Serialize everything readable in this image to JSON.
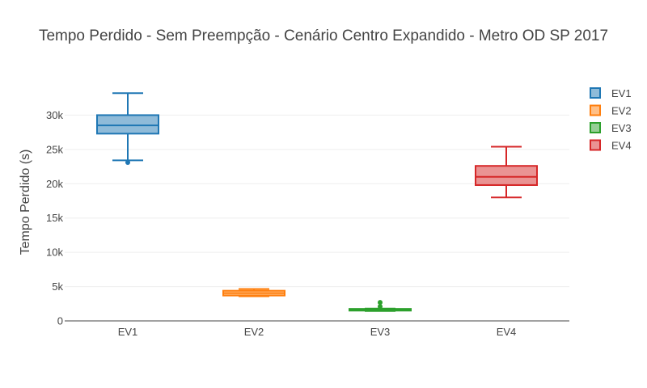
{
  "chart_data": {
    "type": "box",
    "title": "Tempo Perdido - Sem Preempção - Cenário Centro Expandido - Metro OD SP 2017",
    "xlabel": "",
    "ylabel": "Tempo Perdido (s)",
    "ylim": [
      0,
      35000
    ],
    "yticks": [
      0,
      5000,
      10000,
      15000,
      20000,
      25000,
      30000
    ],
    "ytick_labels": [
      "0",
      "5k",
      "10k",
      "15k",
      "20k",
      "25k",
      "30k"
    ],
    "categories": [
      "EV1",
      "EV2",
      "EV3",
      "EV4"
    ],
    "grid": true,
    "legend_position": "right",
    "series": [
      {
        "name": "EV1",
        "color": "#1f77b4",
        "fill": "rgba(31,119,180,0.5)",
        "min": 23400,
        "q1": 27300,
        "median": 28500,
        "q3": 30000,
        "max": 33200,
        "outliers": [
          23100
        ]
      },
      {
        "name": "EV2",
        "color": "#ff7f0e",
        "fill": "rgba(255,127,14,0.5)",
        "min": 3600,
        "q1": 3700,
        "median": 4050,
        "q3": 4400,
        "max": 4650,
        "outliers": []
      },
      {
        "name": "EV3",
        "color": "#2ca02c",
        "fill": "rgba(44,160,44,0.5)",
        "min": 1450,
        "q1": 1500,
        "median": 1650,
        "q3": 1750,
        "max": 1800,
        "outliers": [
          2100,
          2700
        ]
      },
      {
        "name": "EV4",
        "color": "#d62728",
        "fill": "rgba(214,39,40,0.5)",
        "min": 18000,
        "q1": 19800,
        "median": 21000,
        "q3": 22600,
        "max": 25400,
        "outliers": []
      }
    ]
  }
}
